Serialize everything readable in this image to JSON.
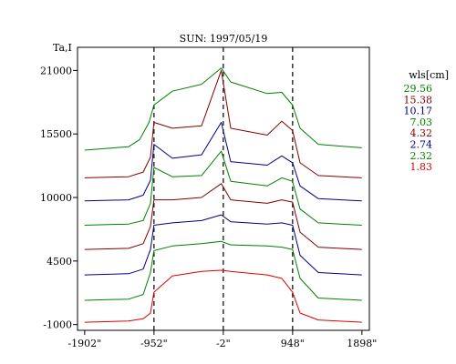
{
  "chart_data": {
    "type": "line",
    "title": "SUN: 1997/05/19",
    "ylabel": "Ta,I",
    "xlabel": "",
    "xlim": [
      -2000,
      2000
    ],
    "ylim": [
      -1500,
      23000
    ],
    "x_ticks": [
      {
        "value": -1902,
        "label": "-1902\""
      },
      {
        "value": -952,
        "label": "-952\""
      },
      {
        "value": -2,
        "label": "-2\""
      },
      {
        "value": 948,
        "label": "948\""
      },
      {
        "value": 1898,
        "label": "1898\""
      }
    ],
    "y_ticks": [
      {
        "value": 21000,
        "label": "21000"
      },
      {
        "value": 15500,
        "label": "15500"
      },
      {
        "value": 10000,
        "label": "10000"
      },
      {
        "value": 4500,
        "label": "4500"
      },
      {
        "value": -1000,
        "label": "-1000"
      }
    ],
    "vertical_markers": [
      -952,
      -2,
      948
    ],
    "legend": {
      "title": "wls[cm]",
      "placement": "right"
    },
    "series": [
      {
        "name": "29.56",
        "color": "#008000",
        "x": [
          -1902,
          -1300,
          -1150,
          -1020,
          -952,
          -700,
          -300,
          -30,
          100,
          600,
          800,
          948,
          1050,
          1300,
          1898
        ],
        "y": [
          14100,
          14400,
          15000,
          16500,
          18000,
          19200,
          19800,
          21200,
          20000,
          19000,
          19100,
          18000,
          16000,
          14600,
          14300
        ]
      },
      {
        "name": "15.38",
        "color": "#800000",
        "x": [
          -1902,
          -1300,
          -1100,
          -1000,
          -952,
          -700,
          -300,
          -30,
          100,
          600,
          800,
          948,
          1050,
          1300,
          1898
        ],
        "y": [
          11700,
          11800,
          12200,
          13500,
          16500,
          16000,
          16200,
          21000,
          16000,
          15400,
          16600,
          15800,
          13000,
          11900,
          11700
        ]
      },
      {
        "name": "10.17",
        "color": "#000080",
        "x": [
          -1902,
          -1300,
          -1100,
          -1000,
          -952,
          -700,
          -300,
          -30,
          100,
          600,
          800,
          948,
          1050,
          1300,
          1898
        ],
        "y": [
          9700,
          9800,
          10200,
          11500,
          14600,
          13400,
          13700,
          16500,
          13100,
          12800,
          13600,
          13000,
          11000,
          9900,
          9700
        ]
      },
      {
        "name": "7.03",
        "color": "#008000",
        "x": [
          -1902,
          -1300,
          -1100,
          -1000,
          -952,
          -700,
          -300,
          -30,
          100,
          600,
          800,
          948,
          1050,
          1300,
          1898
        ],
        "y": [
          7600,
          7700,
          8000,
          9500,
          12600,
          11800,
          11900,
          14000,
          11400,
          11000,
          11700,
          11400,
          9000,
          7800,
          7600
        ]
      },
      {
        "name": "4.32",
        "color": "#800000",
        "x": [
          -1902,
          -1300,
          -1100,
          -1000,
          -952,
          -700,
          -300,
          -30,
          100,
          600,
          800,
          948,
          1050,
          1300,
          1898
        ],
        "y": [
          5500,
          5600,
          6000,
          7500,
          9800,
          9800,
          10000,
          11200,
          9800,
          9500,
          9800,
          9600,
          7000,
          5700,
          5500
        ]
      },
      {
        "name": "2.74",
        "color": "#000080",
        "x": [
          -1902,
          -1300,
          -1100,
          -1000,
          -952,
          -700,
          -300,
          -30,
          100,
          600,
          800,
          948,
          1050,
          1300,
          1898
        ],
        "y": [
          3300,
          3400,
          3800,
          5500,
          7600,
          7800,
          8000,
          8500,
          7900,
          7700,
          7800,
          7600,
          5000,
          3500,
          3300
        ]
      },
      {
        "name": "2.32",
        "color": "#008000",
        "x": [
          -1902,
          -1300,
          -1100,
          -1000,
          -952,
          -700,
          -300,
          -30,
          100,
          600,
          800,
          948,
          1050,
          1300,
          1898
        ],
        "y": [
          1100,
          1200,
          1600,
          3500,
          5400,
          5800,
          6000,
          6200,
          5900,
          5800,
          5700,
          5500,
          3000,
          1300,
          1100
        ]
      },
      {
        "name": "1.83",
        "color": "#e00000",
        "x": [
          -1902,
          -1300,
          -1100,
          -1000,
          -952,
          -700,
          -300,
          -30,
          100,
          600,
          800,
          948,
          1050,
          1300,
          1898
        ],
        "y": [
          -800,
          -700,
          -500,
          0,
          1800,
          3200,
          3600,
          3700,
          3600,
          3300,
          3000,
          1800,
          0,
          -600,
          -800
        ]
      }
    ]
  }
}
